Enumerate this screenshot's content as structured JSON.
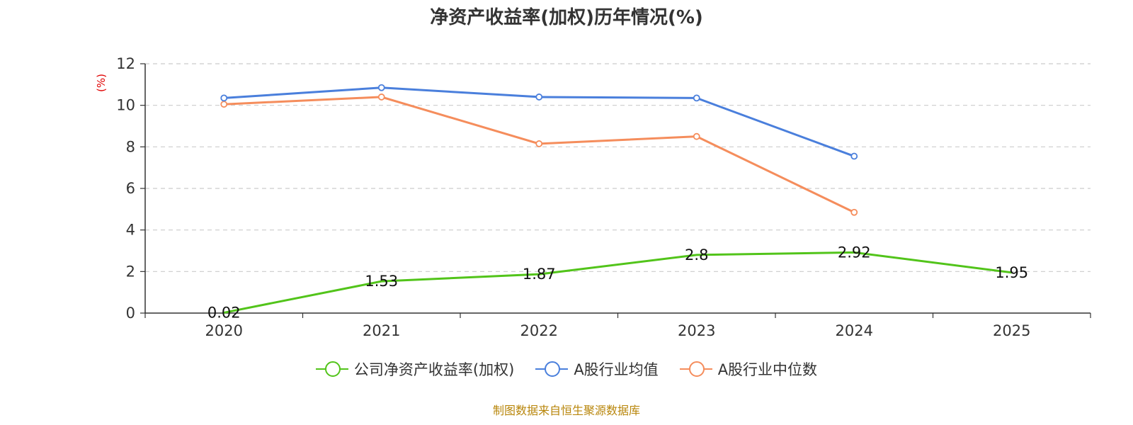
{
  "chart_data": {
    "type": "line",
    "title": "净资产收益率(加权)历年情况(%)",
    "ylabel": "(%)",
    "xlabel": "",
    "categories": [
      "2020",
      "2021",
      "2022",
      "2023",
      "2024",
      "2025"
    ],
    "ylim": [
      0,
      12
    ],
    "yticks": [
      0,
      2,
      4,
      6,
      8,
      10,
      12
    ],
    "grid": true,
    "legend_position": "bottom",
    "series": [
      {
        "name": "公司净资产收益率(加权)",
        "color": "#52c41a",
        "values": [
          0.02,
          1.53,
          1.87,
          2.8,
          2.92,
          1.95
        ],
        "labels": [
          "0.02",
          "1.53",
          "1.87",
          "2.8",
          "2.92",
          "1.95"
        ],
        "show_labels": true,
        "show_markers": false
      },
      {
        "name": "A股行业均值",
        "color": "#4a7fdc",
        "values": [
          10.35,
          10.85,
          10.4,
          10.35,
          7.55,
          null
        ],
        "show_labels": false,
        "show_markers": true
      },
      {
        "name": "A股行业中位数",
        "color": "#f58d5c",
        "values": [
          10.05,
          10.4,
          8.15,
          8.5,
          4.85,
          null
        ],
        "show_labels": false,
        "show_markers": true
      }
    ]
  },
  "source": "制图数据来自恒生聚源数据库"
}
